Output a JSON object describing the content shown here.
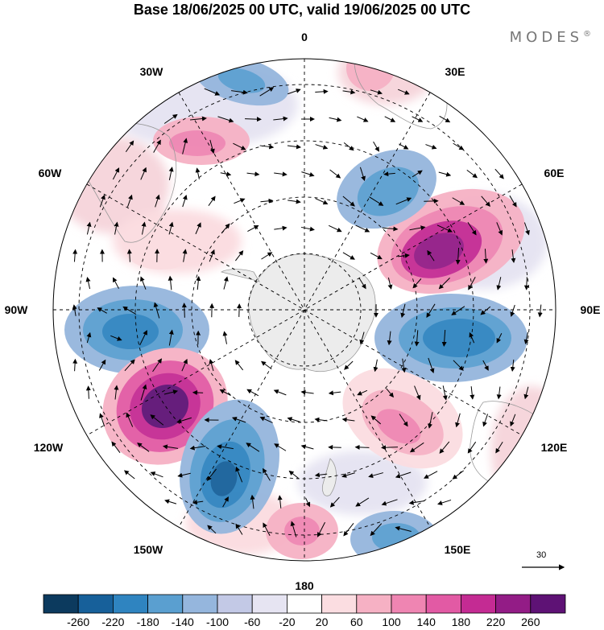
{
  "title": "Base 18/06/2025 00 UTC, valid 19/06/2025 00 UTC",
  "brand": "MODES",
  "brand_mark": "®",
  "longitude_labels": [
    "0",
    "30E",
    "60E",
    "90E",
    "120E",
    "150E",
    "180",
    "150W",
    "120W",
    "90W",
    "60W",
    "30W"
  ],
  "vector_reference": "30",
  "colorbar": {
    "colors": [
      "#0c3a5e",
      "#17609a",
      "#2f84c0",
      "#5a9fd0",
      "#95b6dd",
      "#c3c9e6",
      "#e6e4f2",
      "#ffffff",
      "#fbdde1",
      "#f6b1c4",
      "#ef85b2",
      "#e25aa4",
      "#c42b93",
      "#931c86",
      "#5e1275"
    ],
    "labels": [
      "-260",
      "-220",
      "-180",
      "-140",
      "-100",
      "-60",
      "-20",
      "20",
      "60",
      "100",
      "140",
      "180",
      "220",
      "260"
    ]
  }
}
